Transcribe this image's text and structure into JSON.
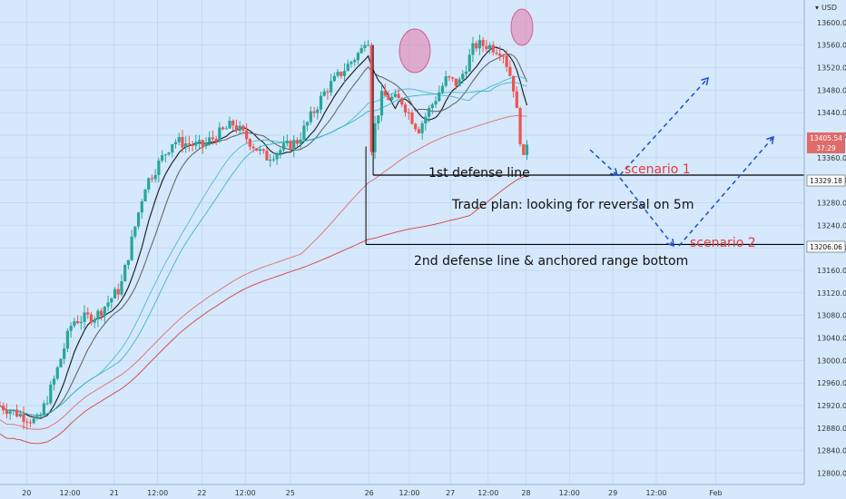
{
  "chart_data": {
    "type": "candlestick",
    "title": "",
    "currency": "USD",
    "ylim": [
      12780,
      13640
    ],
    "y_ticks": [
      12800,
      12840,
      12880,
      12920,
      12960,
      13000,
      13040,
      13080,
      13120,
      13160,
      13200,
      13240,
      13280,
      13320,
      13360,
      13400,
      13440,
      13480,
      13520,
      13560,
      13600
    ],
    "x_ticks": [
      {
        "label": "20",
        "x": 0.033
      },
      {
        "label": "12:00",
        "x": 0.087
      },
      {
        "label": "21",
        "x": 0.142
      },
      {
        "label": "12:00",
        "x": 0.196
      },
      {
        "label": "22",
        "x": 0.251
      },
      {
        "label": "12:00",
        "x": 0.305
      },
      {
        "label": "25",
        "x": 0.361
      },
      {
        "label": "26",
        "x": 0.459
      },
      {
        "label": "12:00",
        "x": 0.509
      },
      {
        "label": "27",
        "x": 0.56
      },
      {
        "label": "12:00",
        "x": 0.607
      },
      {
        "label": "28",
        "x": 0.654
      },
      {
        "label": "12:00",
        "x": 0.708
      },
      {
        "label": "29",
        "x": 0.762
      },
      {
        "label": "12:00",
        "x": 0.816
      },
      {
        "label": "Feb",
        "x": 0.89
      }
    ],
    "price_badges": [
      {
        "value": "13405.54",
        "color": "#e06b6b"
      },
      {
        "value": "37:29",
        "color": "#e06b6b"
      },
      {
        "value": "13329.18",
        "color": "#ffffff"
      },
      {
        "value": "13206.06",
        "color": "#ffffff"
      }
    ],
    "levels": [
      {
        "name": "1st defense line",
        "value": 13329.18,
        "x_start": 0.464
      },
      {
        "name": "2nd defense line & anchored range bottom",
        "value": 13206.06,
        "x_start": 0.455
      }
    ],
    "annotations": {
      "first_line": "1st defense line",
      "trade_plan": "Trade plan: looking for reversal on 5m",
      "second_line": "2nd defense line & anchored range bottom",
      "scenario1": "scenario 1",
      "scenario2": "scenario 2"
    },
    "ohlc_keypoints": [
      {
        "x": 0.0,
        "close": 12920
      },
      {
        "x": 0.047,
        "close": 12890
      },
      {
        "x": 0.066,
        "close": 12960
      },
      {
        "x": 0.09,
        "close": 13070
      },
      {
        "x": 0.12,
        "close": 13080
      },
      {
        "x": 0.15,
        "close": 13130
      },
      {
        "x": 0.18,
        "close": 13310
      },
      {
        "x": 0.215,
        "close": 13390
      },
      {
        "x": 0.25,
        "close": 13380
      },
      {
        "x": 0.29,
        "close": 13420
      },
      {
        "x": 0.33,
        "close": 13360
      },
      {
        "x": 0.37,
        "close": 13390
      },
      {
        "x": 0.405,
        "close": 13480
      },
      {
        "x": 0.455,
        "close": 13560
      },
      {
        "x": 0.46,
        "close": 13380
      },
      {
        "x": 0.475,
        "close": 13470
      },
      {
        "x": 0.5,
        "close": 13460
      },
      {
        "x": 0.52,
        "close": 13410
      },
      {
        "x": 0.555,
        "close": 13500
      },
      {
        "x": 0.57,
        "close": 13490
      },
      {
        "x": 0.59,
        "close": 13560
      },
      {
        "x": 0.605,
        "close": 13560
      },
      {
        "x": 0.625,
        "close": 13550
      },
      {
        "x": 0.638,
        "close": 13490
      },
      {
        "x": 0.65,
        "close": 13360
      },
      {
        "x": 0.658,
        "close": 13405
      }
    ],
    "ma_series": [
      {
        "name": "",
        "color": "#000000"
      },
      {
        "name": "",
        "color": "#5a5a5a"
      },
      {
        "name": "",
        "color": "#3fb6c9"
      },
      {
        "name": "",
        "color": "#2db0c0"
      },
      {
        "name": "",
        "color": "#e06060"
      },
      {
        "name": "",
        "color": "#d42e2e"
      }
    ],
    "colors": {
      "bull": "#26a69a",
      "bear": "#ef5350",
      "bg": "#d6e8fb",
      "grid": "#b8d3ef",
      "arrow": "#1a4fc9"
    }
  }
}
